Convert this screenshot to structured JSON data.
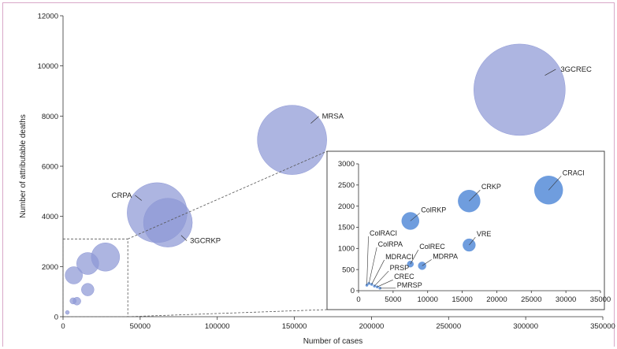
{
  "chart_data": [
    {
      "type": "scatter",
      "variant": "bubble",
      "xlabel": "Number of cases",
      "ylabel": "Number of attributable deaths",
      "xlim": [
        0,
        350000
      ],
      "ylim": [
        0,
        12000
      ],
      "xticks": [
        0,
        50000,
        100000,
        150000,
        200000,
        250000,
        300000,
        350000
      ],
      "xtick_labels": [
        "0",
        "50000",
        "100000",
        "150000",
        "200000",
        "250000",
        "300000",
        "350000"
      ],
      "yticks": [
        0,
        2000,
        4000,
        6000,
        8000,
        10000,
        12000
      ],
      "ytick_labels": [
        "0",
        "2000",
        "4000",
        "6000",
        "8000",
        "10000",
        "12000"
      ],
      "bubble_color": "#8e98d6",
      "points": [
        {
          "label": "3GCREC",
          "x": 296000,
          "y": 9050,
          "size": 58
        },
        {
          "label": "MRSA",
          "x": 148500,
          "y": 7050,
          "size": 44
        },
        {
          "label": "CRPA",
          "x": 61000,
          "y": 4150,
          "size": 38
        },
        {
          "label": "3GCRKP",
          "x": 68000,
          "y": 3750,
          "size": 31
        },
        {
          "label": "",
          "x": 27500,
          "y": 2380,
          "size": 18
        },
        {
          "label": "",
          "x": 16000,
          "y": 2120,
          "size": 14
        },
        {
          "label": "",
          "x": 7000,
          "y": 1650,
          "size": 11
        },
        {
          "label": "",
          "x": 16000,
          "y": 1080,
          "size": 8
        },
        {
          "label": "",
          "x": 9000,
          "y": 620,
          "size": 5
        },
        {
          "label": "",
          "x": 6500,
          "y": 630,
          "size": 4
        },
        {
          "label": "",
          "x": 2800,
          "y": 170,
          "size": 2.5
        }
      ]
    },
    {
      "type": "scatter",
      "variant": "bubble",
      "role": "inset",
      "xlim": [
        0,
        35000
      ],
      "ylim": [
        0,
        3000
      ],
      "xticks": [
        0,
        5000,
        10000,
        15000,
        20000,
        25000,
        30000,
        35000
      ],
      "xtick_labels": [
        "0",
        "5000",
        "10000",
        "15000",
        "20000",
        "25000",
        "30000",
        "35000"
      ],
      "yticks": [
        0,
        500,
        1000,
        1500,
        2000,
        2500,
        3000
      ],
      "ytick_labels": [
        "0",
        "500",
        "1000",
        "1500",
        "2000",
        "2500",
        "3000"
      ],
      "bubble_color": "#5b8fd9",
      "points": [
        {
          "label": "CRACI",
          "x": 27500,
          "y": 2380,
          "size": 18
        },
        {
          "label": "CRKP",
          "x": 16000,
          "y": 2120,
          "size": 14
        },
        {
          "label": "ColRKP",
          "x": 7500,
          "y": 1650,
          "size": 11
        },
        {
          "label": "VRE",
          "x": 16000,
          "y": 1080,
          "size": 8
        },
        {
          "label": "ColREC",
          "x": 7500,
          "y": 630,
          "size": 4
        },
        {
          "label": "MDRPA",
          "x": 9200,
          "y": 590,
          "size": 5
        },
        {
          "label": "ColRACI",
          "x": 1200,
          "y": 130,
          "size": 1.6
        },
        {
          "label": "ColRPA",
          "x": 1500,
          "y": 170,
          "size": 1.6
        },
        {
          "label": "MDRACI",
          "x": 1900,
          "y": 150,
          "size": 1.6
        },
        {
          "label": "PRSP",
          "x": 2300,
          "y": 110,
          "size": 1.6
        },
        {
          "label": "CREC",
          "x": 2700,
          "y": 90,
          "size": 1.6
        },
        {
          "label": "PMRSP",
          "x": 3100,
          "y": 60,
          "size": 1.6
        }
      ]
    }
  ]
}
